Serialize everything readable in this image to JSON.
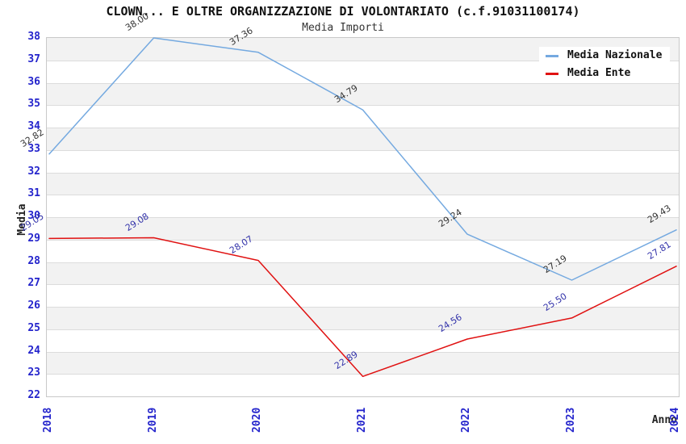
{
  "header": {
    "title": "CLOWN... E OLTRE ORGANIZZAZIONE DI VOLONTARIATO (c.f.91031100174)",
    "subtitle": "Media Importi"
  },
  "legend": {
    "items": [
      {
        "label": "Media Nazionale",
        "color": "#74A9E0"
      },
      {
        "label": "Media Ente",
        "color": "#E01111"
      }
    ]
  },
  "axes": {
    "y_title": "Media",
    "x_title": "Anno",
    "y_ticks": [
      38,
      37,
      36,
      35,
      34,
      33,
      32,
      31,
      30,
      29,
      28,
      27,
      26,
      25,
      24,
      23,
      22
    ],
    "tick_color": "#2424CC"
  },
  "chart_data": {
    "type": "line",
    "title": "CLOWN... E OLTRE ORGANIZZAZIONE DI VOLONTARIATO (c.f.91031100174)",
    "subtitle": "Media Importi",
    "xlabel": "Anno",
    "ylabel": "Media",
    "x": [
      "2018",
      "2019",
      "2020",
      "2021",
      "2022",
      "2023",
      "2024"
    ],
    "ylim": [
      22,
      38
    ],
    "y_step": 1,
    "grid": "horizontal-bands-alternating",
    "legend_position": "top-right",
    "band_color": "#F2F2F2",
    "gridline_color": "#DCDCDC",
    "series": [
      {
        "name": "Media Nazionale",
        "color": "#74A9E0",
        "values": [
          32.82,
          38.0,
          37.36,
          34.79,
          29.24,
          27.19,
          29.43
        ],
        "labels": [
          "32.82",
          "38.00",
          "37.36",
          "34.79",
          "29.24",
          "27.19",
          "29.43"
        ],
        "label_color": "#333333"
      },
      {
        "name": "Media Ente",
        "color": "#E01111",
        "values": [
          29.05,
          29.08,
          28.07,
          22.89,
          24.56,
          25.5,
          27.81
        ],
        "labels": [
          "29.05",
          "29.08",
          "28.07",
          "22.89",
          "24.56",
          "25.50",
          "27.81"
        ],
        "label_color": "#3333AA"
      }
    ]
  }
}
